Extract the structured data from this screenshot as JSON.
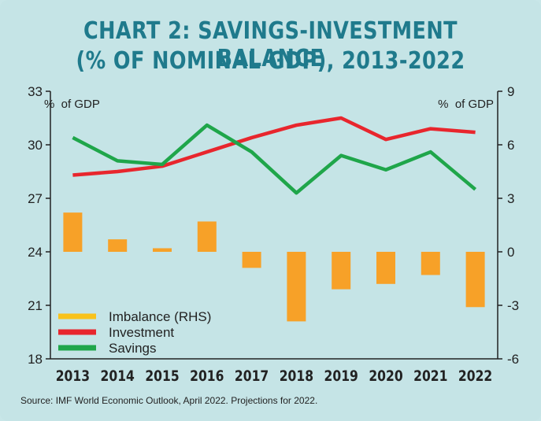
{
  "chart_data": {
    "type": "bar+line",
    "title": "CHART 2: SAVINGS-INVESTMENT BALANCE",
    "subtitle": "(% OF NOMINAL GDP), 2013-2022",
    "categories": [
      "2013",
      "2014",
      "2015",
      "2016",
      "2017",
      "2018",
      "2019",
      "2020",
      "2021",
      "2022"
    ],
    "left_axis": {
      "label": "%  of GDP",
      "range": [
        18,
        33
      ],
      "ticks": [
        18,
        21,
        24,
        27,
        30,
        33
      ]
    },
    "right_axis": {
      "label": "%  of GDP",
      "range": [
        -6,
        9
      ],
      "ticks": [
        -6,
        -3,
        0,
        3,
        6,
        9
      ]
    },
    "series": [
      {
        "name": "Imbalance (RHS)",
        "type": "bar",
        "axis": "right",
        "color": "#f7a128",
        "values": [
          2.2,
          0.7,
          0.2,
          1.7,
          -0.9,
          -3.9,
          -2.1,
          -1.8,
          -1.3,
          -3.1
        ]
      },
      {
        "name": "Investment",
        "type": "line",
        "axis": "left",
        "color": "#e8262d",
        "values": [
          28.3,
          28.5,
          28.8,
          29.6,
          30.4,
          31.1,
          31.5,
          30.3,
          30.9,
          30.7
        ]
      },
      {
        "name": "Savings",
        "type": "line",
        "axis": "left",
        "color": "#1fa64a",
        "values": [
          30.4,
          29.1,
          28.9,
          31.1,
          29.6,
          27.3,
          29.4,
          28.6,
          29.6,
          27.5
        ]
      }
    ],
    "legend": {
      "position": "bottom-left",
      "entries": [
        "Imbalance (RHS)",
        "Investment",
        "Savings"
      ],
      "imbalance_swatch_color": "#f9c21a"
    },
    "grid": false
  },
  "source": "Source: IMF World Economic Outlook, April 2022. Projections for 2022."
}
